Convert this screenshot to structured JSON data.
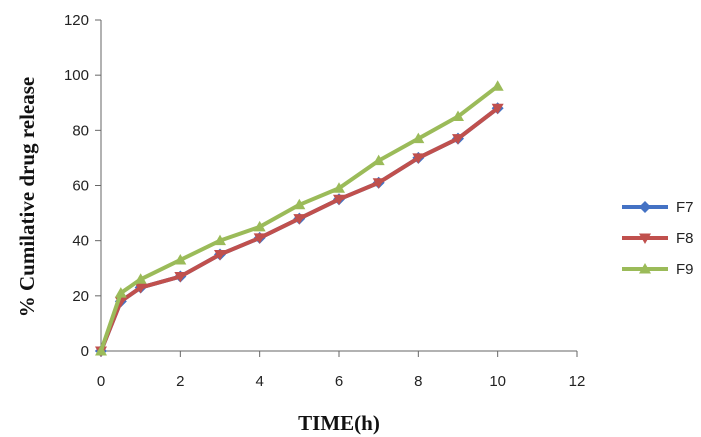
{
  "chart_data": {
    "type": "line",
    "title": "",
    "xlabel": "TIME(h)",
    "ylabel": "% Cumilative drug release",
    "xlim": [
      0,
      12
    ],
    "ylim": [
      0,
      120
    ],
    "xticks": [
      "0",
      "2",
      "4",
      "6",
      "8",
      "10",
      "12"
    ],
    "yticks": [
      "0",
      "20",
      "40",
      "60",
      "80",
      "100",
      "120"
    ],
    "grid": false,
    "legend_position": "right",
    "series": [
      {
        "name": "F7",
        "color": "#4472C4",
        "marker": "diamond",
        "points": [
          [
            0,
            0
          ],
          [
            0.5,
            18
          ],
          [
            1,
            23
          ],
          [
            2,
            27
          ],
          [
            3,
            35
          ],
          [
            4,
            41
          ],
          [
            5,
            48
          ],
          [
            6,
            55
          ],
          [
            7,
            61
          ],
          [
            8,
            70
          ],
          [
            9,
            77
          ],
          [
            10,
            88
          ]
        ]
      },
      {
        "name": "F8",
        "color": "#C0504D",
        "marker": "triangle-down",
        "points": [
          [
            0,
            0
          ],
          [
            0.5,
            18
          ],
          [
            1,
            23
          ],
          [
            2,
            27
          ],
          [
            3,
            35
          ],
          [
            4,
            41
          ],
          [
            5,
            48
          ],
          [
            6,
            55
          ],
          [
            7,
            61
          ],
          [
            8,
            70
          ],
          [
            9,
            77
          ],
          [
            10,
            88
          ]
        ]
      },
      {
        "name": "F9",
        "color": "#9BBB59",
        "marker": "triangle-up",
        "points": [
          [
            0,
            0
          ],
          [
            0.5,
            21
          ],
          [
            1,
            26
          ],
          [
            2,
            33
          ],
          [
            3,
            40
          ],
          [
            4,
            45
          ],
          [
            5,
            53
          ],
          [
            6,
            59
          ],
          [
            7,
            69
          ],
          [
            8,
            77
          ],
          [
            9,
            85
          ],
          [
            10,
            96
          ]
        ]
      }
    ]
  }
}
